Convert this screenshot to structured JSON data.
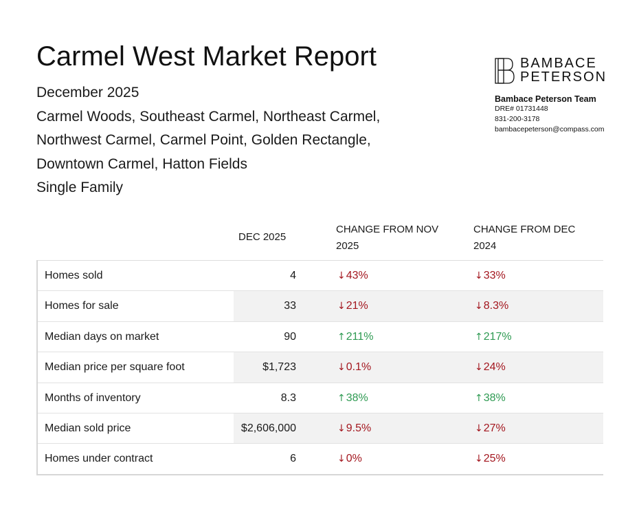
{
  "report": {
    "title": "Carmel West Market Report",
    "period": "December 2025",
    "area_line_1": "Carmel Woods, Southeast Carmel, Northeast Carmel,",
    "area_line_2": "Northwest Carmel, Carmel Point, Golden Rectangle,",
    "area_line_3": "Downtown Carmel, Hatton Fields",
    "property_type": "Single Family"
  },
  "brand": {
    "logo_line_1": "BAMBACE",
    "logo_line_2": "PETERSON",
    "team_name": "Bambace Peterson Team",
    "dre": "DRE# 01731448",
    "phone": "831-200-3178",
    "email": "bambacepeterson@compass.com",
    "logo_icon": "bp-monogram-icon"
  },
  "colors": {
    "down": "#a3161e",
    "up": "#2e9a52"
  },
  "table": {
    "headers": {
      "current": "DEC 2025",
      "change_month": "CHANGE FROM NOV 2025",
      "change_year": "CHANGE FROM DEC 2024"
    },
    "rows": [
      {
        "label": "Homes sold",
        "value": "4",
        "nov": "43%",
        "nov_dir": "down",
        "yoy": "33%",
        "yoy_dir": "down"
      },
      {
        "label": "Homes for sale",
        "value": "33",
        "nov": "21%",
        "nov_dir": "down",
        "yoy": "8.3%",
        "yoy_dir": "down"
      },
      {
        "label": "Median days on market",
        "value": "90",
        "nov": "211%",
        "nov_dir": "up",
        "yoy": "217%",
        "yoy_dir": "up"
      },
      {
        "label": "Median price per square foot",
        "value": "$1,723",
        "nov": "0.1%",
        "nov_dir": "down",
        "yoy": "24%",
        "yoy_dir": "down"
      },
      {
        "label": "Months of inventory",
        "value": "8.3",
        "nov": "38%",
        "nov_dir": "up",
        "yoy": "38%",
        "yoy_dir": "up"
      },
      {
        "label": "Median sold price",
        "value": "$2,606,000",
        "nov": "9.5%",
        "nov_dir": "down",
        "yoy": "27%",
        "yoy_dir": "down"
      },
      {
        "label": "Homes under contract",
        "value": "6",
        "nov": "0%",
        "nov_dir": "down",
        "yoy": "25%",
        "yoy_dir": "down"
      }
    ]
  }
}
